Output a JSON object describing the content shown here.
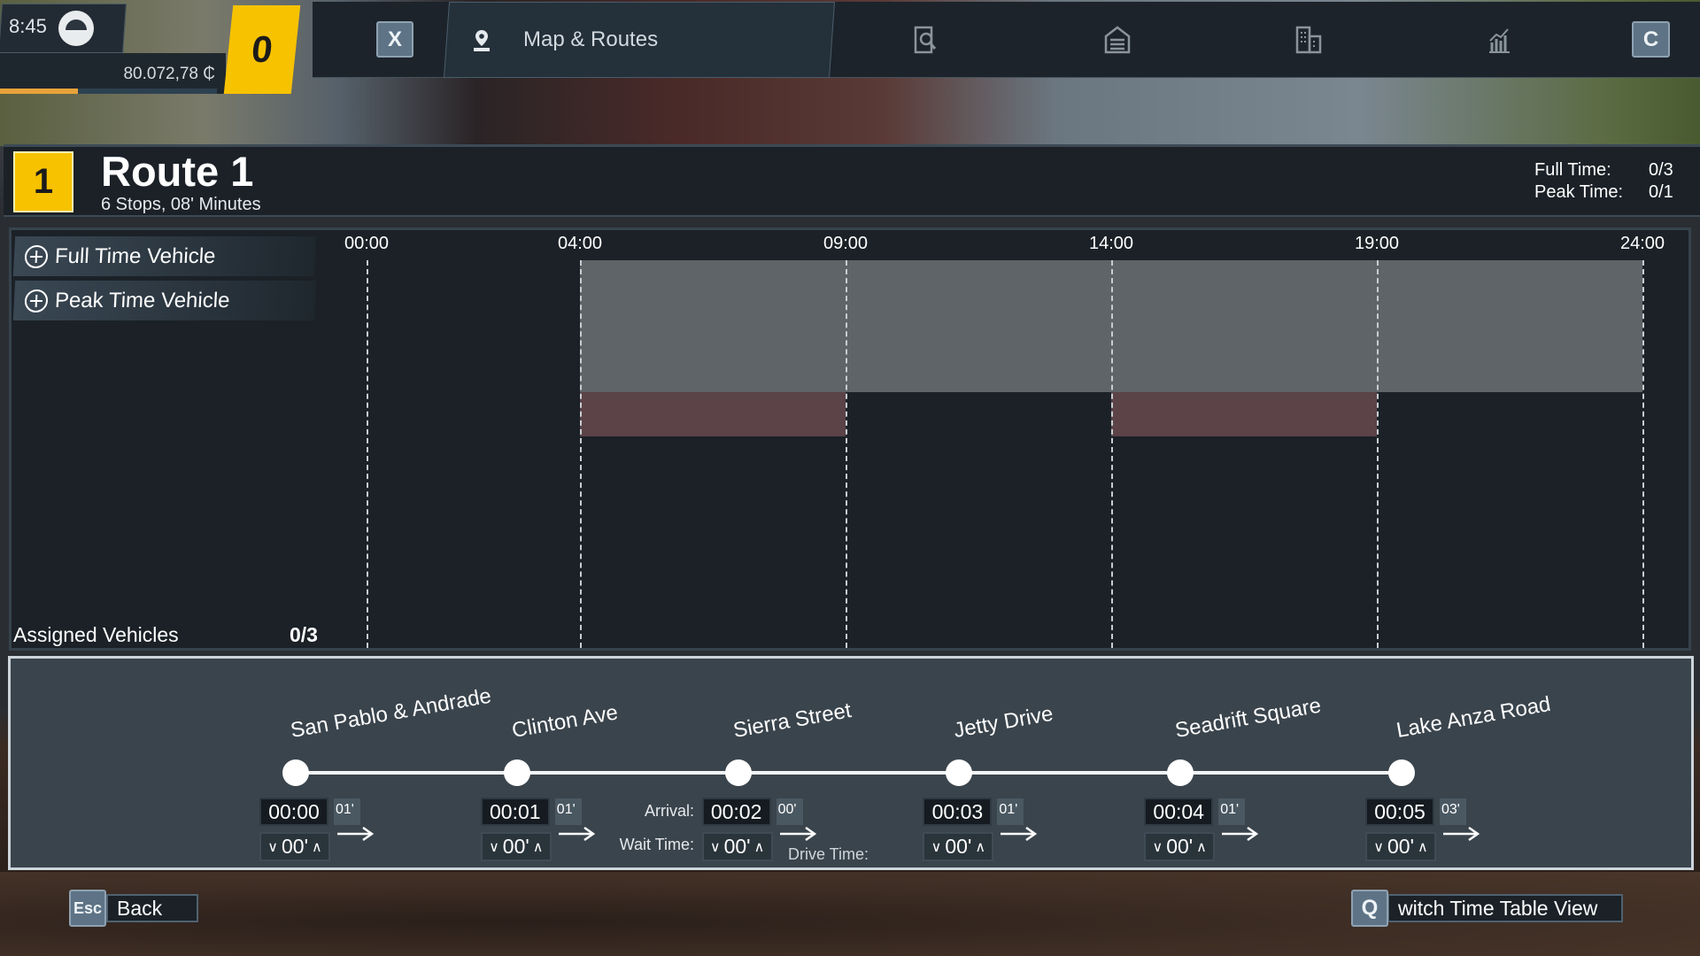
{
  "hud": {
    "time": "8:45",
    "money": "80.072,78 ₵",
    "progress_percent": 36,
    "notifications": "0"
  },
  "nav": {
    "close_key": "X",
    "active_tab": {
      "label": "Map & Routes",
      "icon": "map-pin-icon"
    },
    "tabs": [
      {
        "icon": "search-document-icon"
      },
      {
        "icon": "depot-icon"
      },
      {
        "icon": "buildings-icon"
      },
      {
        "icon": "statistics-icon"
      }
    ],
    "next_key": "C"
  },
  "route": {
    "number": "1",
    "title": "Route 1",
    "subtitle": "6 Stops, 08' Minutes",
    "full_time_label": "Full Time:",
    "full_time_value": "0/3",
    "peak_time_label": "Peak Time:",
    "peak_time_value": "0/1"
  },
  "timeline": {
    "add_full_time": "Full Time Vehicle",
    "add_peak_time": "Peak Time Vehicle",
    "ticks": [
      "00:00",
      "04:00",
      "09:00",
      "14:00",
      "19:00",
      "24:00"
    ],
    "full_time_windows": [
      [
        "04:00",
        "24:00"
      ]
    ],
    "peak_time_windows": [
      [
        "04:00",
        "09:00"
      ],
      [
        "14:00",
        "19:00"
      ]
    ],
    "assigned_label": "Assigned Vehicles",
    "assigned_value": "0/3",
    "colors": {
      "full_time": "#5f6468",
      "peak_time": "#5b4347"
    }
  },
  "stops": {
    "arrival_label": "Arrival:",
    "wait_label": "Wait Time:",
    "drive_label": "Drive Time:",
    "items": [
      {
        "name": "San Pablo & Andrade",
        "arrival": "00:00",
        "drive": "01'",
        "wait": "00'"
      },
      {
        "name": "Clinton Ave",
        "arrival": "00:01",
        "drive": "01'",
        "wait": "00'"
      },
      {
        "name": "Sierra Street",
        "arrival": "00:02",
        "drive": "00'",
        "wait": "00'"
      },
      {
        "name": "Jetty Drive",
        "arrival": "00:03",
        "drive": "01'",
        "wait": "00'"
      },
      {
        "name": "Seadrift Square",
        "arrival": "00:04",
        "drive": "01'",
        "wait": "00'"
      },
      {
        "name": "Lake Anza Road",
        "arrival": "00:05",
        "drive": "03'",
        "wait": "00'"
      }
    ]
  },
  "footer": {
    "back_key": "Esc",
    "back_label": "Back",
    "switch_key": "Q",
    "switch_label": "witch Time Table View"
  }
}
